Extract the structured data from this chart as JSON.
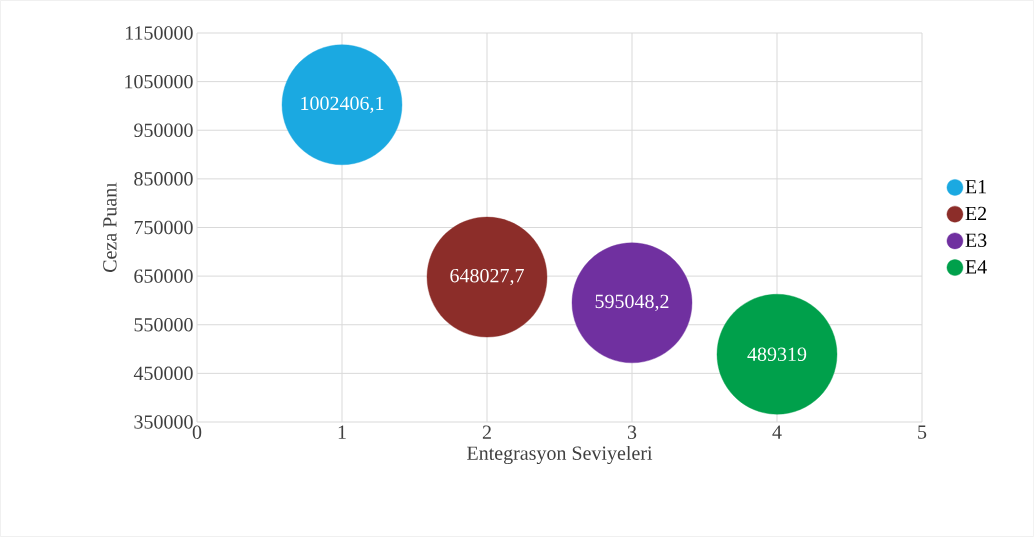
{
  "chart_data": {
    "type": "bubble",
    "xlabel": "Entegrasyon Seviyeleri",
    "ylabel": "Ceza Puanı",
    "xlim": [
      0,
      5
    ],
    "ylim": [
      350000,
      1150000
    ],
    "xticks": [
      0,
      1,
      2,
      3,
      4,
      5
    ],
    "yticks": [
      350000,
      450000,
      550000,
      650000,
      750000,
      850000,
      950000,
      1050000,
      1150000
    ],
    "grid": true,
    "legend": "right",
    "series": [
      {
        "name": "E1",
        "color": "#1ba9e1",
        "x": [
          1
        ],
        "values": [
          1002406.1
        ],
        "sizes": [
          1
        ],
        "value_labels": [
          "1002406,1"
        ]
      },
      {
        "name": "E2",
        "color": "#8c2d29",
        "x": [
          2
        ],
        "values": [
          648027.7
        ],
        "sizes": [
          1
        ],
        "value_labels": [
          "648027,7"
        ]
      },
      {
        "name": "E3",
        "color": "#7030a0",
        "x": [
          3
        ],
        "values": [
          595048.2
        ],
        "sizes": [
          1
        ],
        "value_labels": [
          "595048,2"
        ]
      },
      {
        "name": "E4",
        "color": "#00a04b",
        "x": [
          4
        ],
        "values": [
          489319
        ],
        "sizes": [
          1
        ],
        "value_labels": [
          "489319"
        ]
      }
    ]
  }
}
